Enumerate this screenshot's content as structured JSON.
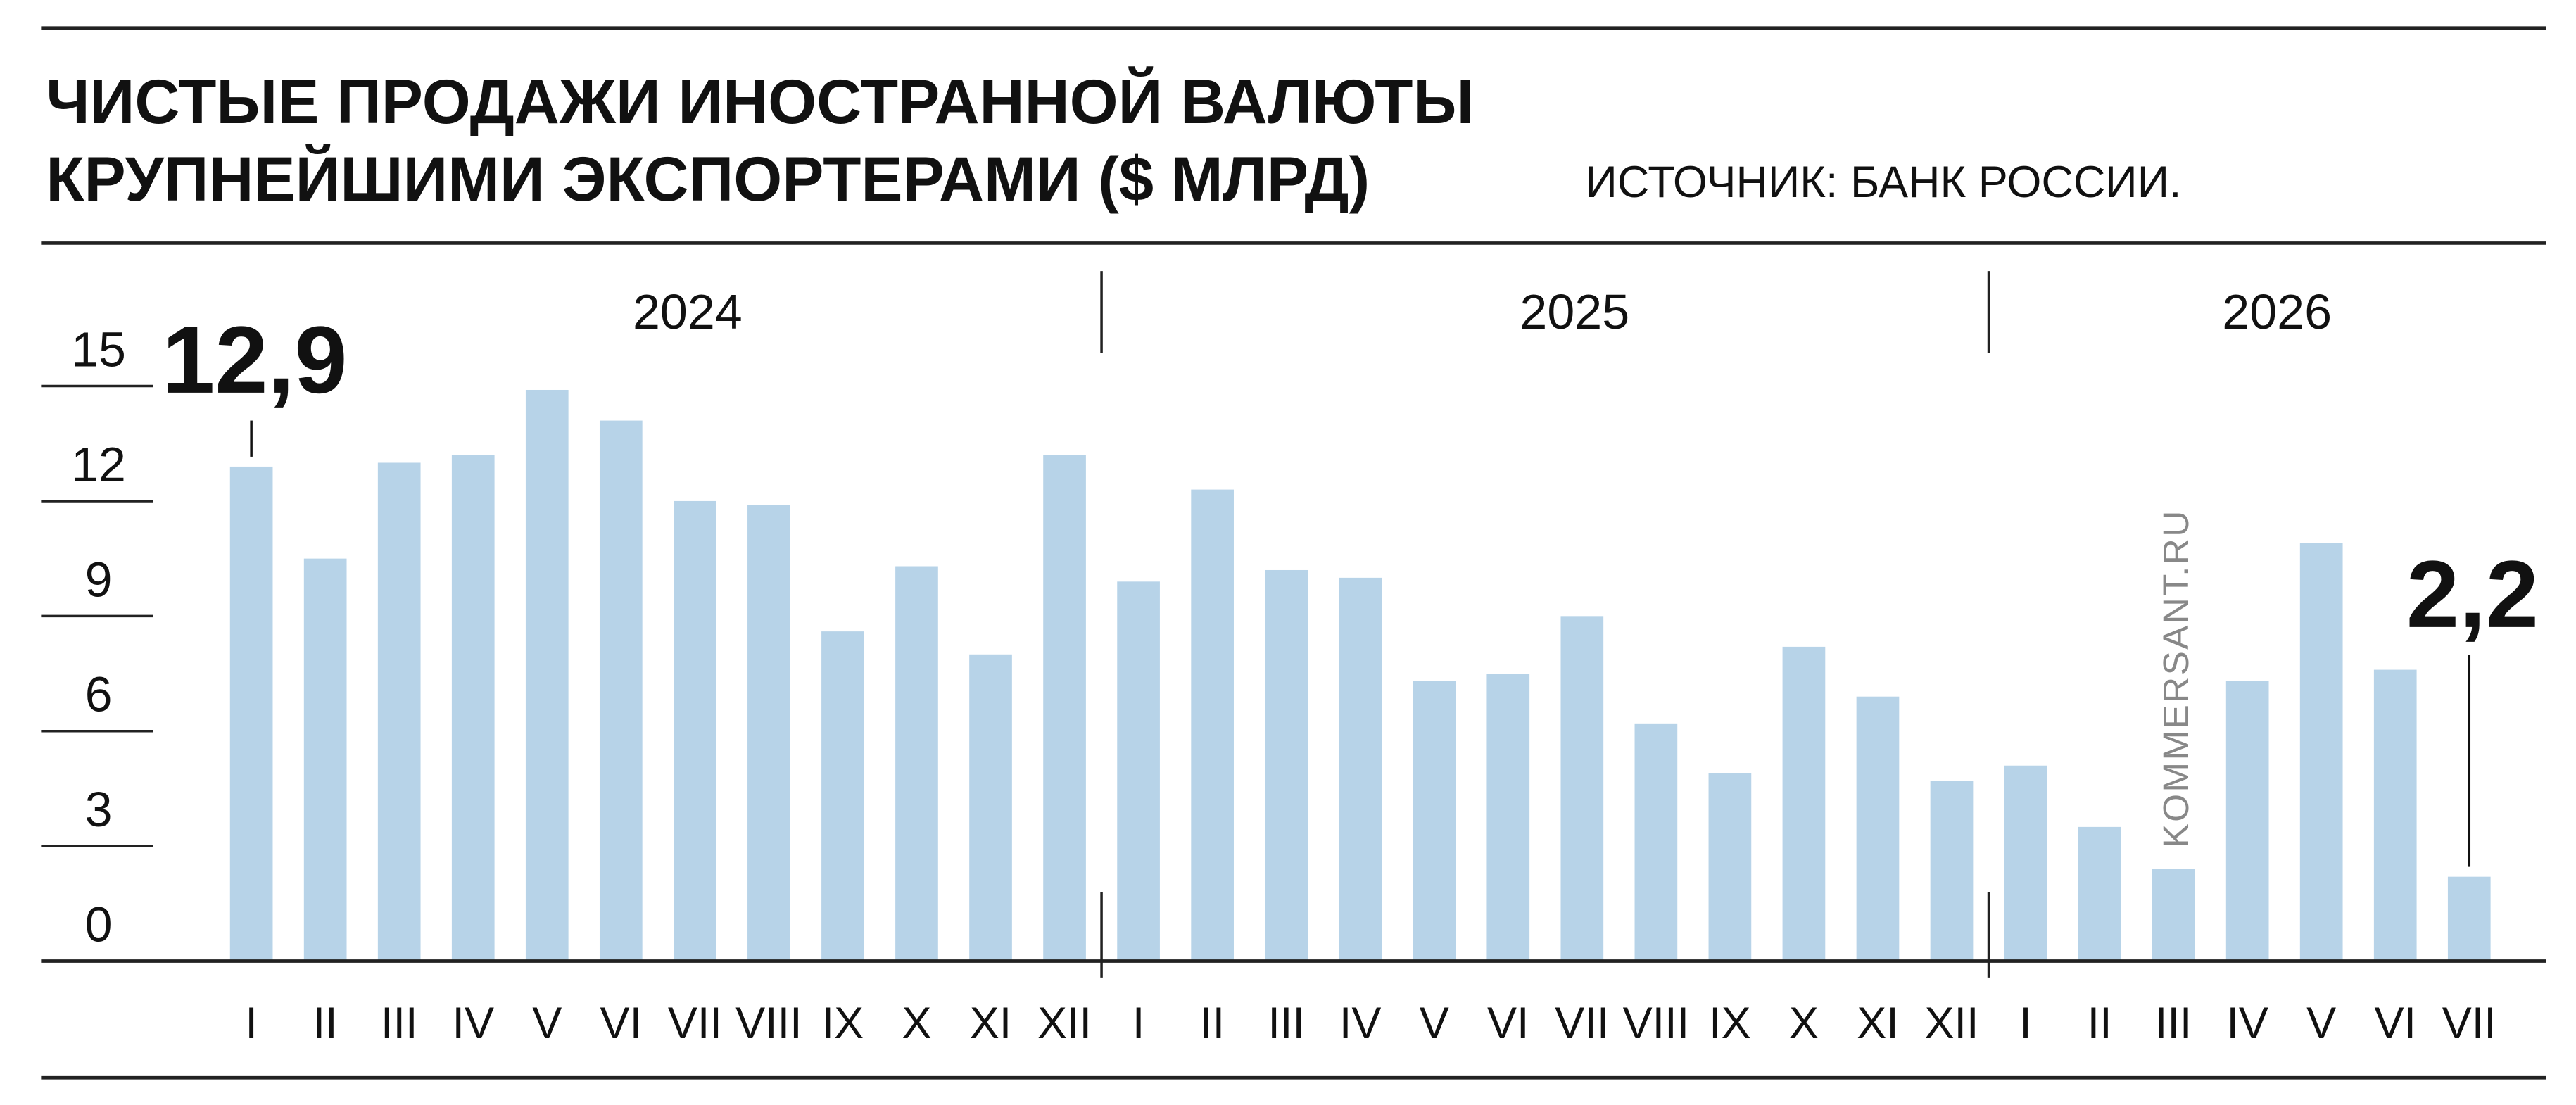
{
  "chart_data": {
    "type": "bar",
    "title": [
      "ЧИСТЫЕ ПРОДАЖИ ИНОСТРАННОЙ ВАЛЮТЫ",
      "КРУПНЕЙШИМИ ЭКСПОРТЕРАМИ ($ МЛРД)"
    ],
    "source": "ИСТОЧНИК: БАНК РОССИИ.",
    "watermark": "KOMMERSANT.RU",
    "color": "#b7d3e8",
    "ylim": [
      0,
      15
    ],
    "yticks": [
      0,
      3,
      6,
      9,
      12,
      15
    ],
    "groups": [
      {
        "label": "2024",
        "categories": [
          "I",
          "II",
          "III",
          "IV",
          "V",
          "VI",
          "VII",
          "VIII",
          "IX",
          "X",
          "XI",
          "XII"
        ],
        "values": [
          12.9,
          10.5,
          13.0,
          13.2,
          14.9,
          14.1,
          12.0,
          11.9,
          8.6,
          10.3,
          8.0,
          13.2
        ],
        "value_labels": [
          "12,9",
          null,
          null,
          null,
          null,
          null,
          null,
          null,
          null,
          null,
          null,
          null
        ]
      },
      {
        "label": "2025",
        "categories": [
          "I",
          "II",
          "III",
          "IV",
          "V",
          "VI",
          "VII",
          "VIII",
          "IX",
          "X",
          "XI",
          "XII"
        ],
        "values": [
          9.9,
          12.3,
          10.2,
          10.0,
          7.3,
          7.5,
          9.0,
          6.2,
          4.9,
          8.2,
          6.9,
          4.7
        ],
        "value_labels": [
          null,
          null,
          null,
          null,
          null,
          null,
          null,
          null,
          null,
          null,
          null,
          null
        ]
      },
      {
        "label": "2026",
        "categories": [
          "I",
          "II",
          "III",
          "IV",
          "V",
          "VI",
          "VII"
        ],
        "values": [
          5.1,
          3.5,
          2.4,
          7.3,
          10.9,
          7.6,
          2.2
        ],
        "value_labels": [
          null,
          null,
          null,
          null,
          null,
          null,
          "2,2"
        ]
      }
    ]
  }
}
